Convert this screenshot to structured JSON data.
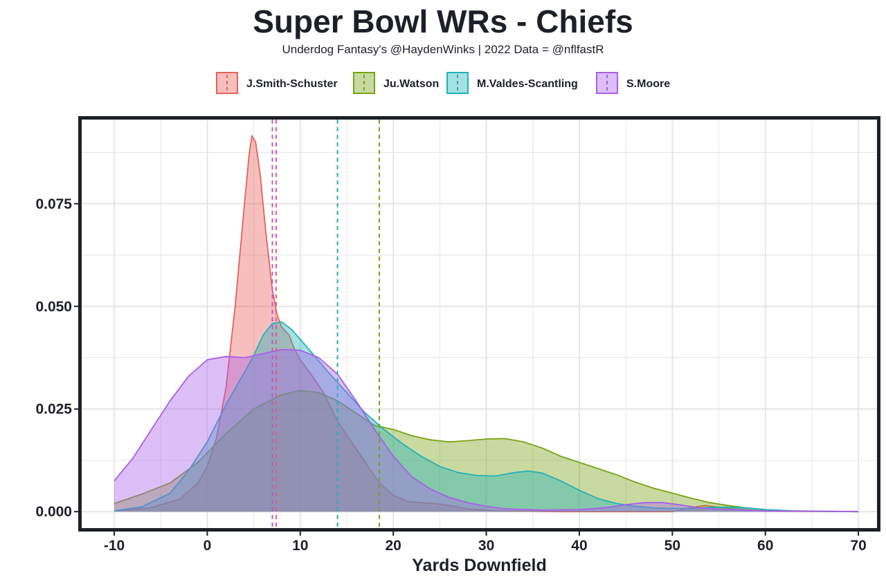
{
  "colors": {
    "text": "#1e2029",
    "panel_border": "#1e2029",
    "grid": "#e5e5e5"
  },
  "chart_data": {
    "type": "area",
    "subtype": "density",
    "title": "Super Bowl WRs - Chiefs",
    "subtitle": "Underdog Fantasy's @HaydenWinks | 2022 Data = @nflfastR",
    "xlabel": "Yards Downfield",
    "ylabel": "",
    "xlim": [
      -13.5,
      72
    ],
    "ylim": [
      -0.004,
      0.0955
    ],
    "x_ticks": [
      -10,
      0,
      10,
      20,
      30,
      40,
      50,
      60,
      70
    ],
    "x_tick_labels": [
      "-10",
      "0",
      "10",
      "20",
      "30",
      "40",
      "50",
      "60",
      "70"
    ],
    "y_ticks": [
      0,
      0.025,
      0.05,
      0.075
    ],
    "y_tick_labels": [
      "0.000",
      "0.025",
      "0.050",
      "0.075"
    ],
    "grid": true,
    "legend_position": "top",
    "series": [
      {
        "name": "J.Smith-Schuster",
        "color": "#e8605a",
        "fill_opacity": 0.4,
        "mean_line": 7.4,
        "points": [
          [
            -10,
            0.0002
          ],
          [
            -6,
            0.001
          ],
          [
            -3,
            0.003
          ],
          [
            -1,
            0.007
          ],
          [
            0,
            0.011
          ],
          [
            1,
            0.018
          ],
          [
            2,
            0.03
          ],
          [
            3,
            0.05
          ],
          [
            4,
            0.075
          ],
          [
            4.5,
            0.087
          ],
          [
            4.8,
            0.0915
          ],
          [
            5.2,
            0.09
          ],
          [
            5.7,
            0.082
          ],
          [
            6.3,
            0.068
          ],
          [
            7,
            0.054
          ],
          [
            7.5,
            0.048
          ],
          [
            8,
            0.045
          ],
          [
            8.8,
            0.043
          ],
          [
            9.3,
            0.04
          ],
          [
            10,
            0.037
          ],
          [
            11,
            0.034
          ],
          [
            12.5,
            0.029
          ],
          [
            14,
            0.022
          ],
          [
            15.5,
            0.017
          ],
          [
            17,
            0.012
          ],
          [
            18.5,
            0.007
          ],
          [
            20,
            0.004
          ],
          [
            21.5,
            0.0025
          ],
          [
            23,
            0.0022
          ],
          [
            24.5,
            0.002
          ],
          [
            26,
            0.0015
          ],
          [
            28,
            0.0007
          ],
          [
            31,
            0.0002
          ],
          [
            38,
            0.0
          ],
          [
            48,
            0.0
          ],
          [
            50,
            0.0
          ],
          [
            52,
            0.001
          ],
          [
            53.5,
            0.0015
          ],
          [
            56,
            0.0008
          ],
          [
            60,
            0.0001
          ],
          [
            70,
            0.0
          ]
        ]
      },
      {
        "name": "Ju.Watson",
        "color": "#78a312",
        "fill_opacity": 0.4,
        "mean_line": 18.5,
        "points": [
          [
            -10,
            0.002
          ],
          [
            -7,
            0.0043
          ],
          [
            -4,
            0.007
          ],
          [
            -1,
            0.012
          ],
          [
            2,
            0.019
          ],
          [
            5,
            0.025
          ],
          [
            8,
            0.0285
          ],
          [
            10,
            0.0295
          ],
          [
            12,
            0.029
          ],
          [
            14,
            0.027
          ],
          [
            16,
            0.024
          ],
          [
            18,
            0.021
          ],
          [
            20,
            0.02
          ],
          [
            22,
            0.0185
          ],
          [
            24,
            0.0175
          ],
          [
            26,
            0.017
          ],
          [
            28,
            0.0173
          ],
          [
            30,
            0.0177
          ],
          [
            32,
            0.0178
          ],
          [
            34,
            0.017
          ],
          [
            36,
            0.0155
          ],
          [
            38,
            0.0135
          ],
          [
            40,
            0.012
          ],
          [
            42,
            0.0105
          ],
          [
            44,
            0.009
          ],
          [
            46,
            0.0072
          ],
          [
            48,
            0.0057
          ],
          [
            50,
            0.0045
          ],
          [
            52,
            0.0033
          ],
          [
            54,
            0.0022
          ],
          [
            56,
            0.0015
          ],
          [
            58,
            0.0009
          ],
          [
            60,
            0.0005
          ],
          [
            63,
            0.0002
          ],
          [
            70,
            0.0
          ]
        ]
      },
      {
        "name": "M.Valdes-Scantling",
        "color": "#1fb1ba",
        "fill_opacity": 0.4,
        "mean_line": 14.0,
        "points": [
          [
            -10,
            0.0002
          ],
          [
            -7,
            0.0012
          ],
          [
            -4,
            0.0045
          ],
          [
            -2,
            0.01
          ],
          [
            0,
            0.017
          ],
          [
            2,
            0.026
          ],
          [
            4,
            0.034
          ],
          [
            5,
            0.038
          ],
          [
            6,
            0.043
          ],
          [
            7,
            0.0458
          ],
          [
            8,
            0.0462
          ],
          [
            9,
            0.0445
          ],
          [
            10,
            0.042
          ],
          [
            11.5,
            0.038
          ],
          [
            13,
            0.034
          ],
          [
            15,
            0.029
          ],
          [
            17,
            0.024
          ],
          [
            19,
            0.02
          ],
          [
            21,
            0.0165
          ],
          [
            23,
            0.0135
          ],
          [
            25,
            0.011
          ],
          [
            27,
            0.0095
          ],
          [
            29,
            0.0088
          ],
          [
            31,
            0.0087
          ],
          [
            33,
            0.0095
          ],
          [
            34.5,
            0.0099
          ],
          [
            36,
            0.0094
          ],
          [
            38,
            0.0075
          ],
          [
            40,
            0.0052
          ],
          [
            42,
            0.0032
          ],
          [
            44,
            0.002
          ],
          [
            46,
            0.0013
          ],
          [
            48,
            0.0009
          ],
          [
            50,
            0.0008
          ],
          [
            52,
            0.0008
          ],
          [
            54,
            0.001
          ],
          [
            56,
            0.0011
          ],
          [
            58,
            0.0009
          ],
          [
            60,
            0.0005
          ],
          [
            63,
            0.0002
          ],
          [
            70,
            0.0
          ]
        ]
      },
      {
        "name": "S.Moore",
        "color": "#a95eea",
        "fill_opacity": 0.4,
        "mean_line": 7.0,
        "points": [
          [
            -10,
            0.0075
          ],
          [
            -8,
            0.013
          ],
          [
            -6,
            0.02
          ],
          [
            -4,
            0.027
          ],
          [
            -2,
            0.033
          ],
          [
            0,
            0.037
          ],
          [
            2,
            0.0378
          ],
          [
            4,
            0.0375
          ],
          [
            6,
            0.0385
          ],
          [
            8,
            0.0395
          ],
          [
            10,
            0.0393
          ],
          [
            12,
            0.0375
          ],
          [
            14,
            0.0335
          ],
          [
            16,
            0.027
          ],
          [
            18,
            0.02
          ],
          [
            20,
            0.0135
          ],
          [
            22,
            0.0085
          ],
          [
            24,
            0.0055
          ],
          [
            26,
            0.0035
          ],
          [
            28,
            0.0022
          ],
          [
            30,
            0.0013
          ],
          [
            32,
            0.0007
          ],
          [
            36,
            0.0004
          ],
          [
            40,
            0.0005
          ],
          [
            43,
            0.001
          ],
          [
            45,
            0.0017
          ],
          [
            47,
            0.0022
          ],
          [
            49,
            0.0022
          ],
          [
            51,
            0.0016
          ],
          [
            53,
            0.0009
          ],
          [
            56,
            0.0005
          ],
          [
            60,
            0.0002
          ],
          [
            65,
            0.0001
          ],
          [
            70,
            0.0
          ]
        ]
      }
    ]
  }
}
